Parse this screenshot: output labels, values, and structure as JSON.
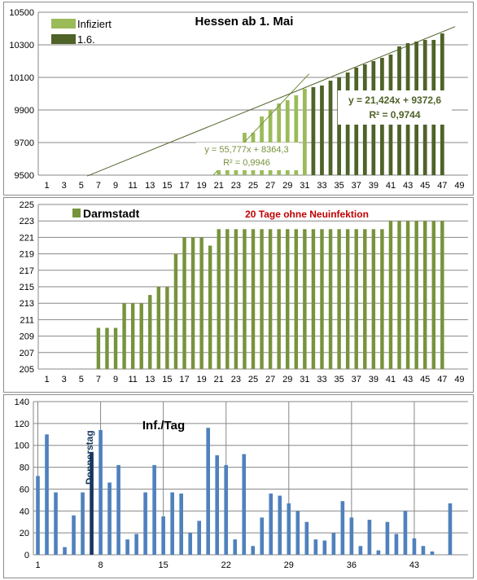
{
  "chart_data": [
    {
      "type": "bar",
      "title": "Hessen ab 1. Mai",
      "legend": [
        {
          "name": "Infiziert",
          "color": "#9bbb59"
        },
        {
          "name": "1.6.",
          "color": "#4f6228"
        }
      ],
      "legend_placement": "top-left",
      "ylim": [
        9500,
        10500
      ],
      "yticks": [
        9500,
        9700,
        9900,
        10100,
        10300,
        10500
      ],
      "xticks": [
        1,
        3,
        5,
        7,
        9,
        11,
        13,
        15,
        17,
        19,
        21,
        23,
        25,
        27,
        29,
        31,
        33,
        35,
        37,
        39,
        41,
        43,
        45,
        47,
        49
      ],
      "xlim": [
        0,
        50
      ],
      "x": [
        1,
        2,
        3,
        4,
        5,
        6,
        7,
        8,
        9,
        10,
        11,
        12,
        13,
        14,
        15,
        16,
        17,
        18,
        19,
        20,
        21,
        22,
        23,
        24,
        25,
        26,
        27,
        28,
        29,
        30,
        31,
        32,
        33,
        34,
        35,
        36,
        37,
        38,
        39,
        40,
        41,
        42,
        43,
        44,
        45,
        46,
        47
      ],
      "values": [
        9490,
        9490,
        9490,
        9490,
        9490,
        9490,
        9490,
        9490,
        9490,
        9490,
        9490,
        9490,
        9490,
        9490,
        9490,
        9490,
        9490,
        9490,
        9490,
        9490,
        9530,
        9530,
        9530,
        9760,
        9760,
        9860,
        9900,
        9940,
        9960,
        9990,
        10030,
        10040,
        10050,
        10080,
        10100,
        10130,
        10160,
        10180,
        10200,
        10220,
        10240,
        10290,
        10310,
        10320,
        10330,
        10330,
        10370
      ],
      "colors_by_x": {
        "light": [
          1,
          31
        ],
        "dark": [
          32,
          47
        ]
      },
      "trendlines": [
        {
          "label": "y = 55,777x + 8364,3",
          "r2": "R² = 0,9946",
          "slope": 55.777,
          "intercept": 8364.3,
          "x_range": [
            20.4,
            31.5
          ]
        },
        {
          "label": "y = 21,424x  + 9372,6",
          "r2": "R² = 0,9744",
          "slope": 21.424,
          "intercept": 9372.6,
          "x_range": [
            5.7,
            48.5
          ]
        }
      ],
      "grid": "horizontal"
    },
    {
      "type": "bar",
      "legend": [
        {
          "name": "Darmstadt",
          "color": "#77933c"
        }
      ],
      "annotation": "20 Tage ohne Neuinfektion",
      "ylim": [
        205,
        225
      ],
      "yticks": [
        205,
        207,
        209,
        211,
        213,
        215,
        217,
        219,
        221,
        223,
        225
      ],
      "xticks": [
        1,
        3,
        5,
        7,
        9,
        11,
        13,
        15,
        17,
        19,
        21,
        23,
        25,
        27,
        29,
        31,
        33,
        35,
        37,
        39,
        41,
        43,
        45,
        47,
        49
      ],
      "xlim": [
        0,
        50
      ],
      "x": [
        1,
        2,
        3,
        4,
        5,
        6,
        7,
        8,
        9,
        10,
        11,
        12,
        13,
        14,
        15,
        16,
        17,
        18,
        19,
        20,
        21,
        22,
        23,
        24,
        25,
        26,
        27,
        28,
        29,
        30,
        31,
        32,
        33,
        34,
        35,
        36,
        37,
        38,
        39,
        40,
        41,
        42,
        43,
        44,
        45,
        46,
        47
      ],
      "values": [
        205,
        205,
        205,
        205,
        205,
        205,
        210,
        210,
        210,
        213,
        213,
        213,
        214,
        215,
        215,
        219,
        221,
        221,
        221,
        220,
        222,
        222,
        222,
        222,
        222,
        222,
        222,
        222,
        222,
        222,
        222,
        222,
        222,
        222,
        222,
        222,
        222,
        222,
        222,
        222,
        223,
        223,
        223,
        223,
        223,
        223,
        223
      ],
      "grid": "horizontal"
    },
    {
      "type": "bar",
      "title": "Inf./Tag",
      "annotation": "Donnerstag",
      "highlight_x": 7,
      "ylim": [
        0,
        140
      ],
      "yticks": [
        0,
        20,
        40,
        60,
        80,
        100,
        120,
        140
      ],
      "xticks": [
        1,
        8,
        15,
        22,
        29,
        36,
        43
      ],
      "xlim": [
        0.5,
        49
      ],
      "x": [
        1,
        2,
        3,
        4,
        5,
        6,
        7,
        8,
        9,
        10,
        11,
        12,
        13,
        14,
        15,
        16,
        17,
        18,
        19,
        20,
        21,
        22,
        23,
        24,
        25,
        26,
        27,
        28,
        29,
        30,
        31,
        32,
        33,
        34,
        35,
        36,
        37,
        38,
        39,
        40,
        41,
        42,
        43,
        44,
        45,
        46,
        47
      ],
      "values": [
        72,
        110,
        57,
        7,
        36,
        57,
        94,
        114,
        66,
        82,
        14,
        19,
        57,
        82,
        35,
        57,
        56,
        20,
        31,
        116,
        91,
        82,
        14,
        92,
        8,
        34,
        56,
        54,
        47,
        40,
        30,
        14,
        13,
        20,
        49,
        34,
        8,
        32,
        4,
        30,
        19,
        40,
        15,
        8,
        3,
        0,
        47
      ],
      "grid": "both"
    }
  ]
}
